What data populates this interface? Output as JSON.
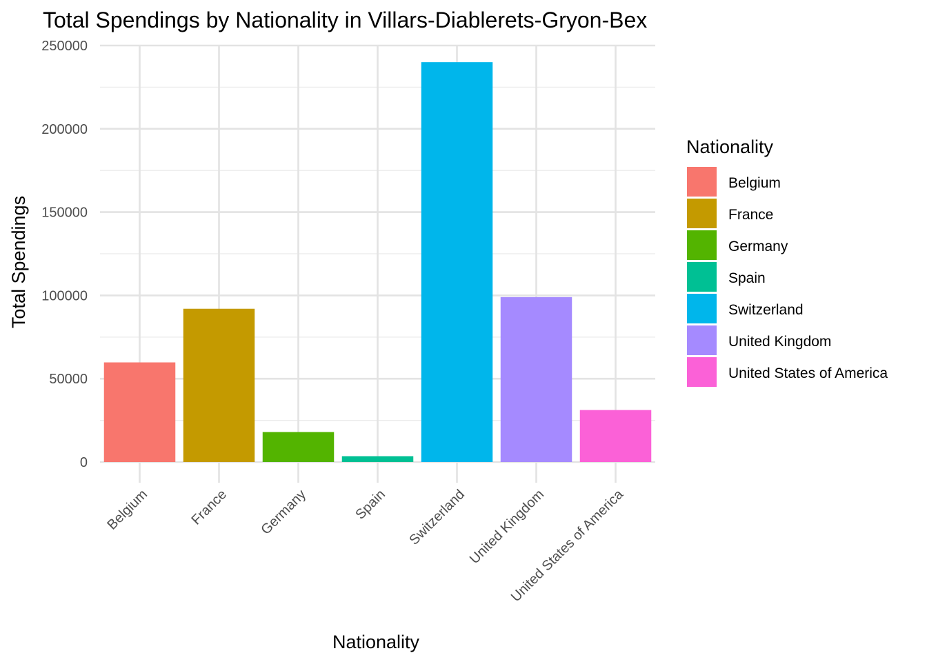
{
  "chart_data": {
    "type": "bar",
    "title": "Total Spendings by Nationality in Villars-Diablerets-Gryon-Bex",
    "xlabel": "Nationality",
    "ylabel": "Total Spendings",
    "categories": [
      "Belgium",
      "France",
      "Germany",
      "Spain",
      "Switzerland",
      "United Kingdom",
      "United States of America"
    ],
    "values": [
      59800,
      92000,
      18000,
      3500,
      240000,
      99000,
      31200
    ],
    "colors": [
      "#F8766D",
      "#C49A00",
      "#53B400",
      "#00C094",
      "#00B6EB",
      "#A58AFF",
      "#FB61D7"
    ],
    "ylim": [
      0,
      250000
    ],
    "yticks": [
      0,
      50000,
      100000,
      150000,
      200000,
      250000
    ],
    "ytick_labels": [
      "0",
      "50000",
      "100000",
      "150000",
      "200000",
      "250000"
    ],
    "grid": true,
    "legend": {
      "title": "Nationality",
      "position": "right",
      "entries": [
        "Belgium",
        "France",
        "Germany",
        "Spain",
        "Switzerland",
        "United Kingdom",
        "United States of America"
      ]
    }
  }
}
